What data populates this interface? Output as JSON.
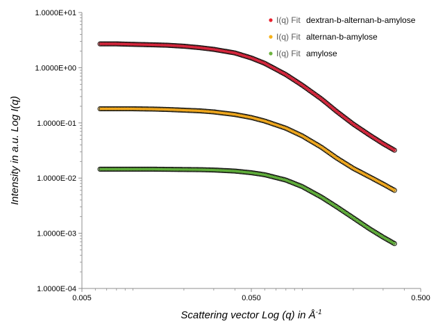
{
  "chart_data": {
    "type": "scatter",
    "title": "",
    "xlabel": "Scattering vector Log (q) in Å",
    "xlabel_sup": "-1",
    "ylabel": "Intensity in a.u. Log I(q)",
    "x_scale": "log",
    "y_scale": "log",
    "xlim": [
      0.005,
      0.5
    ],
    "ylim": [
      0.0001,
      10
    ],
    "x_ticks": [
      0.005,
      0.05,
      0.5
    ],
    "x_tick_labels": [
      "0.005",
      "0.050",
      "0.500"
    ],
    "y_ticks": [
      0.0001,
      0.001,
      0.01,
      0.1,
      1,
      10
    ],
    "y_tick_labels": [
      "1.0000E-04",
      "1.0000E-03",
      "1.0000E-02",
      "1.0000E-01",
      "1.0000E+00",
      "1.0000E+01"
    ],
    "grid": false,
    "legend_position": "top-right",
    "legend_prefix": "I(q) Fit",
    "series": [
      {
        "name": "dextran-b-alternan-b-amylose",
        "color": "#e8212e",
        "fit_color": "#d7263d",
        "x": [
          0.0064,
          0.008,
          0.01,
          0.013,
          0.016,
          0.02,
          0.025,
          0.03,
          0.04,
          0.05,
          0.06,
          0.08,
          0.1,
          0.13,
          0.16,
          0.2,
          0.25,
          0.3,
          0.35
        ],
        "values": [
          2.7,
          2.7,
          2.65,
          2.6,
          2.55,
          2.45,
          2.3,
          2.15,
          1.85,
          1.5,
          1.2,
          0.75,
          0.48,
          0.27,
          0.16,
          0.095,
          0.06,
          0.042,
          0.032
        ]
      },
      {
        "name": "alternan-b-amylose",
        "color": "#f6b21a",
        "fit_color": "#f2a81d",
        "x": [
          0.0064,
          0.008,
          0.01,
          0.013,
          0.016,
          0.02,
          0.025,
          0.03,
          0.04,
          0.05,
          0.06,
          0.08,
          0.1,
          0.13,
          0.16,
          0.2,
          0.25,
          0.3,
          0.35
        ],
        "values": [
          0.18,
          0.18,
          0.18,
          0.178,
          0.175,
          0.17,
          0.165,
          0.158,
          0.142,
          0.125,
          0.108,
          0.08,
          0.058,
          0.036,
          0.023,
          0.015,
          0.0105,
          0.0078,
          0.006
        ]
      },
      {
        "name": "amylose",
        "color": "#6db33f",
        "fit_color": "#5faf3a",
        "x": [
          0.0064,
          0.008,
          0.01,
          0.013,
          0.016,
          0.02,
          0.025,
          0.03,
          0.04,
          0.05,
          0.06,
          0.08,
          0.1,
          0.13,
          0.16,
          0.2,
          0.25,
          0.3,
          0.35
        ],
        "values": [
          0.0145,
          0.0145,
          0.0145,
          0.0145,
          0.0144,
          0.0143,
          0.0142,
          0.014,
          0.0134,
          0.0125,
          0.0115,
          0.0092,
          0.007,
          0.0045,
          0.003,
          0.0019,
          0.0012,
          0.00085,
          0.00065
        ]
      }
    ]
  }
}
